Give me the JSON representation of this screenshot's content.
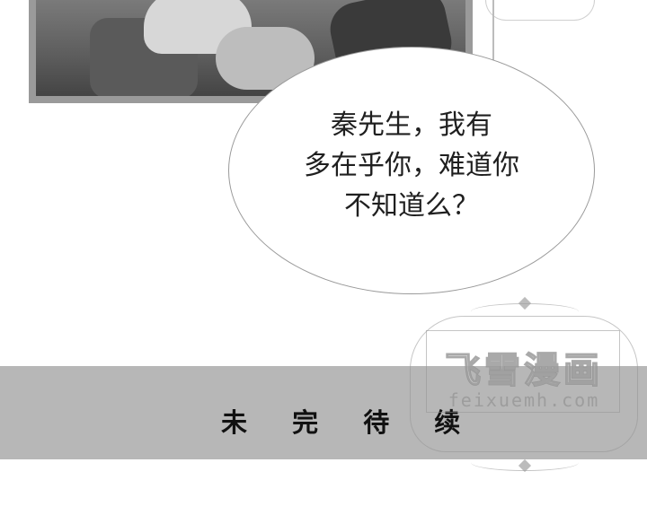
{
  "speech_bubble": {
    "lines": [
      "秦先生，我有",
      "多在乎你，难道你",
      "不知道么？"
    ]
  },
  "footer_band": {
    "label": "未 完 待 续"
  },
  "watermark": {
    "title": "飞雪漫画",
    "url": "feixuemh.com"
  }
}
